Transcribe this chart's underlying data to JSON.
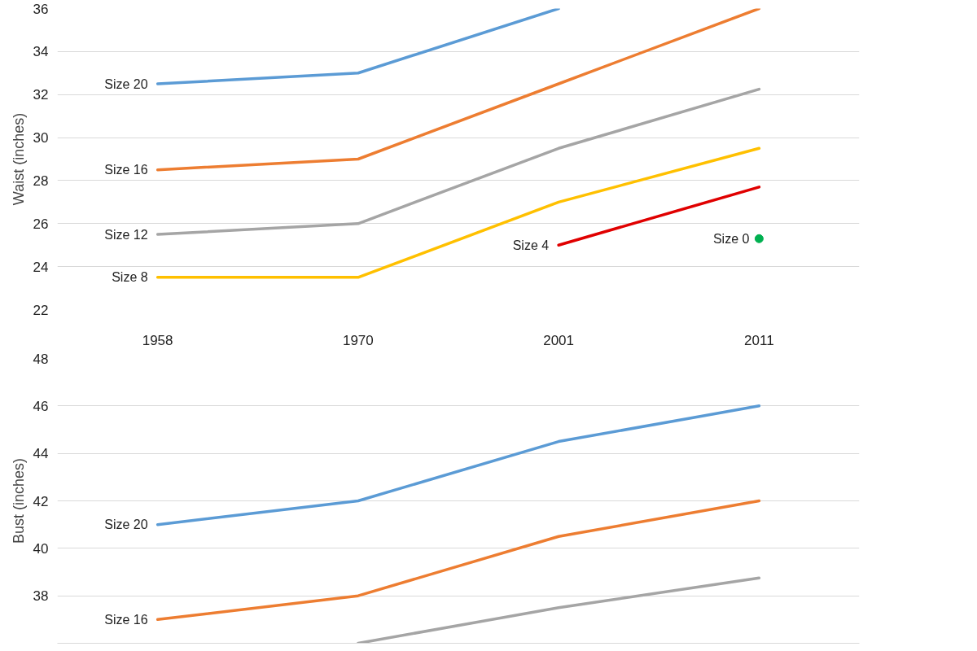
{
  "chart_data": [
    {
      "type": "line",
      "ylabel": "Waist (inches)",
      "categories": [
        "1958",
        "1970",
        "2001",
        "2011"
      ],
      "ylim": [
        22,
        36
      ],
      "yticks": [
        22,
        24,
        26,
        28,
        30,
        32,
        34,
        36
      ],
      "grid": "y",
      "line_style": "solid",
      "series": [
        {
          "name": "Size 20",
          "color": "#5b9bd5",
          "values": [
            32.5,
            33,
            36,
            null
          ]
        },
        {
          "name": "Size 16",
          "color": "#ed7d31",
          "values": [
            28.5,
            29,
            32.5,
            36
          ]
        },
        {
          "name": "Size 12",
          "color": "#a5a5a5",
          "values": [
            25.5,
            26,
            29.5,
            32.25
          ]
        },
        {
          "name": "Size 8",
          "color": "#ffc000",
          "values": [
            23.5,
            23.5,
            27,
            29.5
          ]
        },
        {
          "name": "Size 4",
          "color": "#e00000",
          "values": [
            null,
            null,
            25,
            27.7
          ]
        },
        {
          "name": "Size 0",
          "type": "scatter",
          "marker": "circle",
          "color": "#00b050",
          "values": [
            null,
            null,
            null,
            25.3
          ]
        }
      ]
    },
    {
      "type": "line",
      "ylabel": "Bust (inches)",
      "categories": [
        "1958",
        "1970",
        "2001",
        "2011"
      ],
      "ylim": [
        36,
        48
      ],
      "yticks": [
        38,
        40,
        42,
        44,
        46,
        48
      ],
      "grid": "y",
      "line_style": "solid",
      "tick_labels": "y",
      "series": [
        {
          "name": "Size 20",
          "color": "#5b9bd5",
          "values": [
            41,
            42,
            44.5,
            46
          ]
        },
        {
          "name": "Size 16",
          "color": "#ed7d31",
          "values": [
            37,
            38,
            40.5,
            42
          ]
        },
        {
          "color": "#a5a5a5",
          "values": [
            null,
            36,
            37.5,
            38.75
          ]
        }
      ]
    }
  ]
}
